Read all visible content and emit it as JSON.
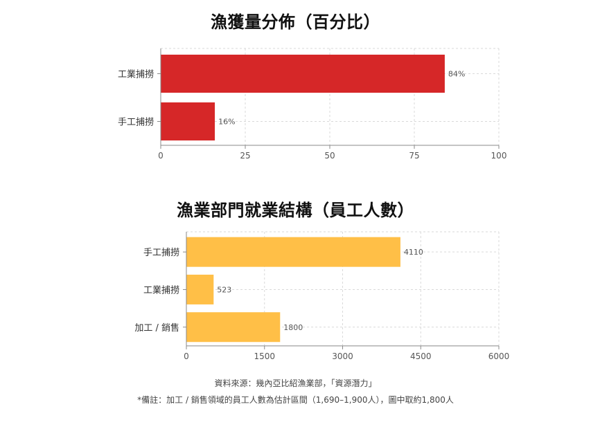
{
  "chart_data": [
    {
      "type": "bar",
      "orientation": "horizontal",
      "title": "漁獲量分佈（百分比）",
      "categories": [
        "工業捕撈",
        "手工捕撈"
      ],
      "values": [
        84,
        16
      ],
      "value_labels": [
        "84%",
        "16%"
      ],
      "xlim": [
        0,
        100
      ],
      "xticks": [
        0,
        25,
        50,
        75,
        100
      ],
      "grid": true,
      "color": "#d62728"
    },
    {
      "type": "bar",
      "orientation": "horizontal",
      "title": "漁業部門就業結構（員工人數）",
      "categories": [
        "手工捕撈",
        "工業捕撈",
        "加工 / 銷售"
      ],
      "values": [
        4110,
        523,
        1800
      ],
      "value_labels": [
        "4110",
        "523",
        "1800"
      ],
      "xlim": [
        0,
        6000
      ],
      "xticks": [
        0,
        1500,
        3000,
        4500,
        6000
      ],
      "grid": true,
      "color": "#ffbf47"
    }
  ],
  "notes": {
    "source": "資料來源：幾內亞比紹漁業部，「資源潛力」",
    "remark": "*備註：加工 / 銷售領域的員工人數為估計區間（1,690–1,900人），圖中取約1,800人"
  }
}
